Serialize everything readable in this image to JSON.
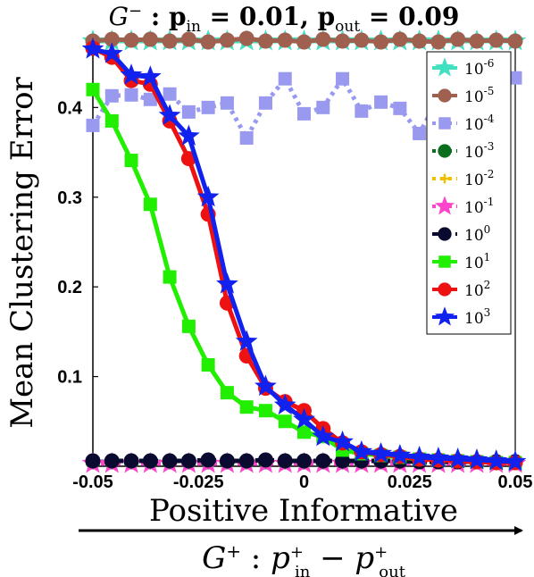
{
  "chart_data": {
    "type": "line",
    "title": "G⁻ : pᵢₙ = 0.01,  pₒᵤₜ = 0.09",
    "xlabel": "Positive Informative",
    "sublabel": "G⁺ : p⁺ᵢₙ − p⁺ₒᵤₜ",
    "ylabel": "Mean Clustering Error",
    "xlim": [
      -0.05,
      0.05
    ],
    "ylim": [
      0.0,
      0.48
    ],
    "xticks": [
      "-0.05",
      "-0.025",
      "0",
      "0.025",
      "0.05"
    ],
    "yticks": [
      "0.1",
      "0.2",
      "0.3",
      "0.4"
    ],
    "x": [
      -0.05,
      -0.0455,
      -0.0409,
      -0.0364,
      -0.0318,
      -0.0273,
      -0.0227,
      -0.0182,
      -0.0136,
      -0.0091,
      -0.0045,
      0.0,
      0.0045,
      0.0091,
      0.0136,
      0.0182,
      0.0227,
      0.0273,
      0.0318,
      0.0364,
      0.0409,
      0.0455,
      0.05
    ],
    "legend_position": "top-right",
    "series": [
      {
        "name": "10^-6",
        "base": "10",
        "exp": "-6",
        "color": "#40e0c0",
        "marker": "star",
        "dash": "solid",
        "values": [
          0.474,
          0.474,
          0.474,
          0.474,
          0.474,
          0.474,
          0.474,
          0.474,
          0.474,
          0.474,
          0.474,
          0.474,
          0.474,
          0.474,
          0.474,
          0.474,
          0.474,
          0.474,
          0.474,
          0.474,
          0.474,
          0.474,
          0.474
        ]
      },
      {
        "name": "10^-5",
        "base": "10",
        "exp": "-5",
        "color": "#a0604f",
        "marker": "circle",
        "dash": "solid",
        "values": [
          0.474,
          0.476,
          0.475,
          0.476,
          0.474,
          0.476,
          0.473,
          0.475,
          0.477,
          0.474,
          0.475,
          0.473,
          0.476,
          0.474,
          0.475,
          0.473,
          0.476,
          0.474,
          0.473,
          0.476,
          0.474,
          0.475,
          0.474
        ]
      },
      {
        "name": "10^-4",
        "base": "10",
        "exp": "-4",
        "color": "#9999f0",
        "marker": "square",
        "dash": "dot",
        "values": [
          0.38,
          0.413,
          0.414,
          0.409,
          0.415,
          0.395,
          0.4,
          0.405,
          0.366,
          0.405,
          0.432,
          0.393,
          0.4,
          0.432,
          0.396,
          0.406,
          0.399,
          0.371,
          0.41,
          0.416,
          0.421,
          0.408,
          0.433
        ]
      },
      {
        "name": "10^-3",
        "base": "10",
        "exp": "-3",
        "color": "#0a6e1e",
        "marker": "circle",
        "dash": "dot",
        "values": [
          0.005,
          0.005,
          0.005,
          0.005,
          0.005,
          0.005,
          0.005,
          0.005,
          0.005,
          0.005,
          0.005,
          0.005,
          0.005,
          0.005,
          0.005,
          0.005,
          0.005,
          0.005,
          0.005,
          0.005,
          0.005,
          0.005,
          0.005
        ]
      },
      {
        "name": "10^-2",
        "base": "10",
        "exp": "-2",
        "color": "#f0c000",
        "marker": "plus",
        "dash": "dot",
        "values": [
          0.004,
          0.004,
          0.004,
          0.004,
          0.004,
          0.004,
          0.004,
          0.004,
          0.004,
          0.004,
          0.004,
          0.004,
          0.004,
          0.004,
          0.004,
          0.004,
          0.004,
          0.004,
          0.004,
          0.004,
          0.004,
          0.004,
          0.004
        ]
      },
      {
        "name": "10^-1",
        "base": "10",
        "exp": "-1",
        "color": "#ff44cc",
        "marker": "star",
        "dash": "dot",
        "values": [
          0.003,
          0.003,
          0.003,
          0.003,
          0.003,
          0.003,
          0.003,
          0.003,
          0.003,
          0.003,
          0.003,
          0.003,
          0.003,
          0.003,
          0.003,
          0.003,
          0.003,
          0.003,
          0.003,
          0.003,
          0.003,
          0.003,
          0.003
        ]
      },
      {
        "name": "10^0",
        "base": "10",
        "exp": "0",
        "color": "#0a0a30",
        "marker": "circle",
        "dash": "dash",
        "values": [
          0.006,
          0.006,
          0.006,
          0.006,
          0.006,
          0.006,
          0.007,
          0.006,
          0.006,
          0.007,
          0.006,
          0.006,
          0.006,
          0.006,
          0.006,
          0.006,
          0.006,
          0.005,
          0.005,
          0.005,
          0.005,
          0.005,
          0.005
        ]
      },
      {
        "name": "10^1",
        "base": "10",
        "exp": "1",
        "color": "#22ee00",
        "marker": "square",
        "dash": "solid",
        "values": [
          0.42,
          0.385,
          0.341,
          0.292,
          0.211,
          0.156,
          0.113,
          0.082,
          0.066,
          0.062,
          0.05,
          0.038,
          0.033,
          0.018,
          0.014,
          0.012,
          0.01,
          0.008,
          0.007,
          0.006,
          0.005,
          0.004,
          0.004
        ]
      },
      {
        "name": "10^2",
        "base": "10",
        "exp": "2",
        "color": "#ee1111",
        "marker": "circle",
        "dash": "solid",
        "values": [
          0.466,
          0.456,
          0.43,
          0.426,
          0.385,
          0.343,
          0.281,
          0.182,
          0.123,
          0.087,
          0.072,
          0.062,
          0.042,
          0.026,
          0.016,
          0.013,
          0.011,
          0.008,
          0.007,
          0.006,
          0.005,
          0.004,
          0.004
        ]
      },
      {
        "name": "10^3",
        "base": "10",
        "exp": "3",
        "color": "#1122ee",
        "marker": "star",
        "dash": "solid",
        "values": [
          0.465,
          0.46,
          0.436,
          0.434,
          0.391,
          0.368,
          0.3,
          0.203,
          0.139,
          0.089,
          0.068,
          0.052,
          0.033,
          0.027,
          0.016,
          0.014,
          0.012,
          0.01,
          0.009,
          0.008,
          0.007,
          0.006,
          0.005
        ]
      }
    ]
  }
}
